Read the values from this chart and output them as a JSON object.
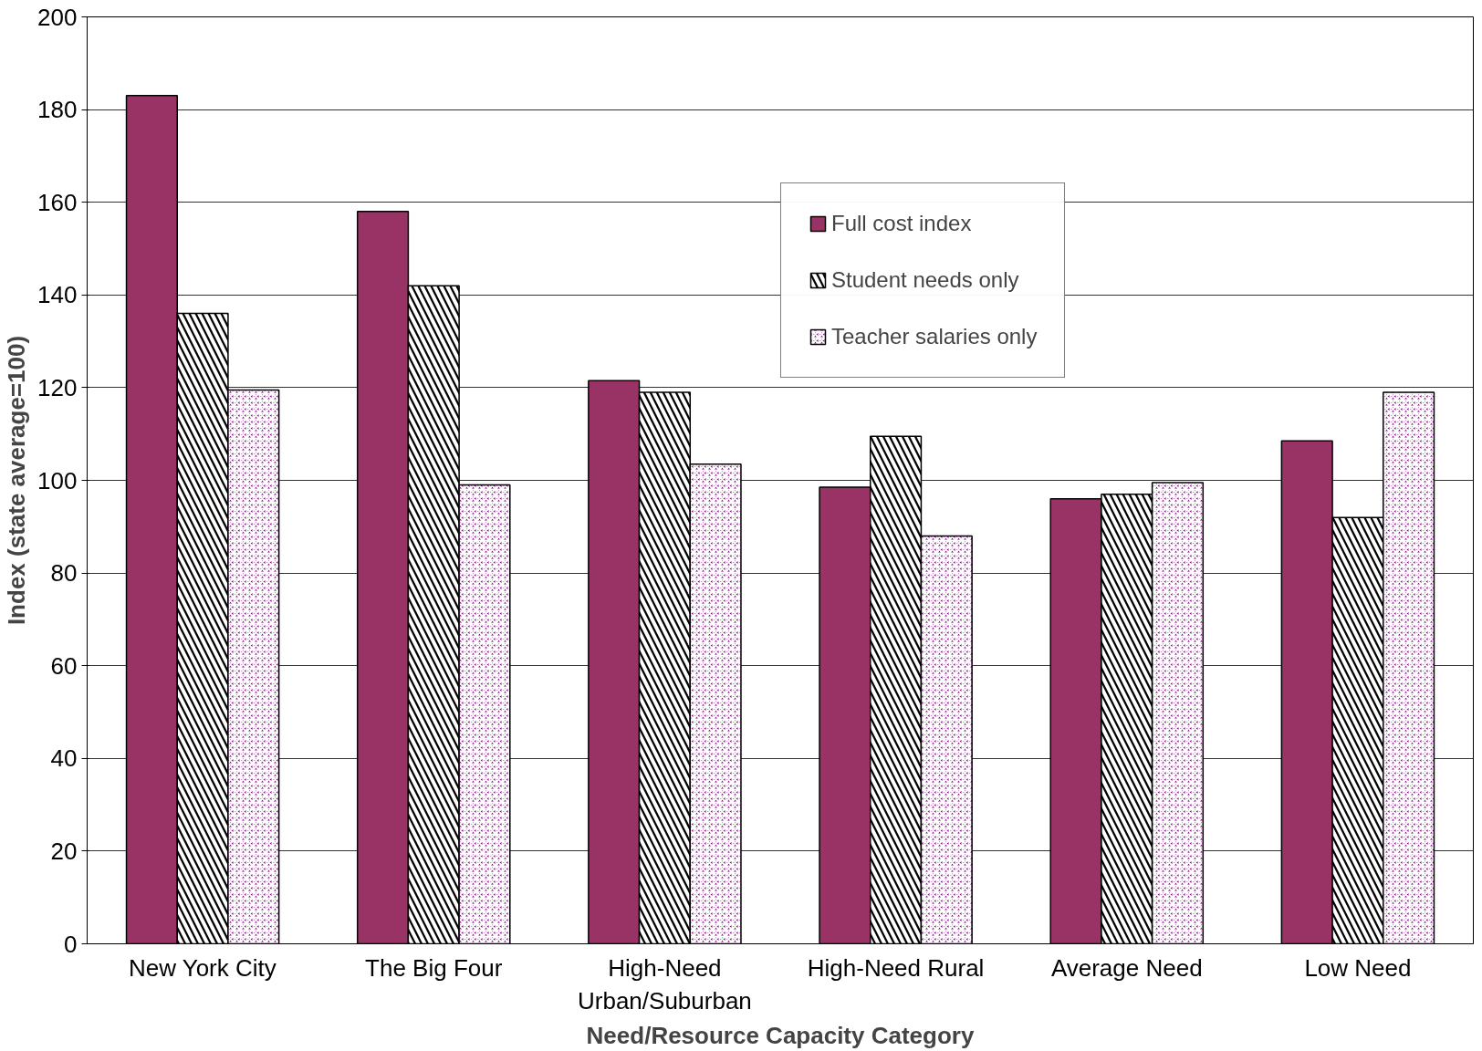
{
  "chart_data": {
    "type": "bar",
    "xlabel": "Need/Resource Capacity Category",
    "ylabel": "Index (state average=100)",
    "categories": [
      "New York City",
      "The Big Four",
      "High-Need Urban/Suburban",
      "High-Need Rural",
      "Average Need",
      "Low Need"
    ],
    "series": [
      {
        "name": "Full cost index",
        "color": "#993366",
        "values": [
          183,
          158,
          121.5,
          98.5,
          96,
          108.5
        ]
      },
      {
        "name": "Student needs only",
        "color": "#000000",
        "values": [
          136,
          142,
          119,
          109.5,
          97,
          92
        ]
      },
      {
        "name": "Teacher salaries only",
        "color": "#800080",
        "values": [
          119.5,
          99,
          103.5,
          88,
          99.5,
          119
        ]
      }
    ],
    "ylim": [
      0,
      200
    ],
    "yticks": [
      0,
      20,
      40,
      60,
      80,
      100,
      120,
      140,
      160,
      180,
      200
    ],
    "grid": "y",
    "legend": "top right"
  }
}
